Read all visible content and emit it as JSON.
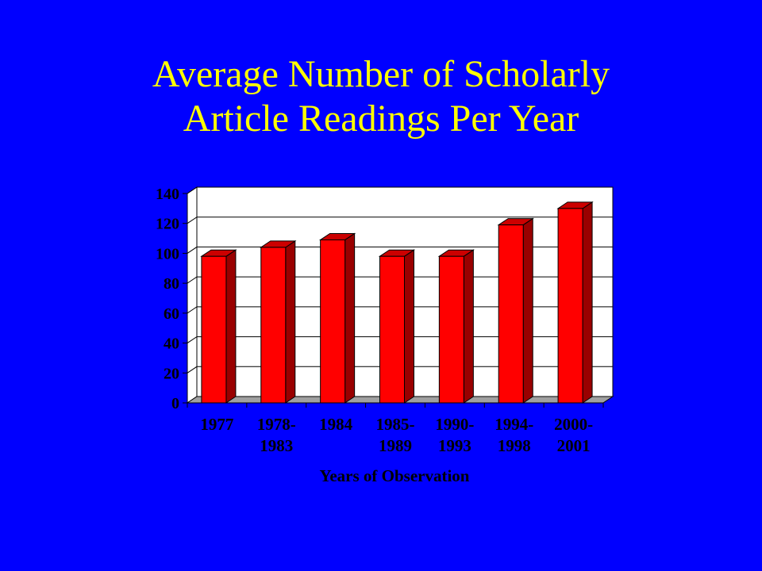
{
  "slide": {
    "title_lines": [
      "Average Number of Scholarly",
      "Article Readings Per Year"
    ],
    "background": "#0000FF",
    "title_color": "#FFFF00"
  },
  "chart_data": {
    "type": "bar",
    "categories": [
      [
        "1977"
      ],
      [
        "1978-",
        "1983"
      ],
      [
        "1984"
      ],
      [
        "1985-",
        "1989"
      ],
      [
        "1990-",
        "1993"
      ],
      [
        "1994-",
        "1998"
      ],
      [
        "2000-",
        "2001"
      ]
    ],
    "values": [
      98,
      104,
      109,
      98,
      98,
      119,
      130
    ],
    "xlabel": "Years of Observation",
    "ylabel": "",
    "ylim": [
      0,
      140
    ],
    "yticks": [
      0,
      20,
      40,
      60,
      80,
      100,
      120,
      140
    ],
    "grid": true,
    "style": "3d",
    "colors": {
      "bar_front": "#FF0000",
      "bar_side": "#990000",
      "bar_top": "#CC0000",
      "plot_bg": "#FFFFFF",
      "floor": "#A0A0A0",
      "gridline": "#000000"
    }
  }
}
